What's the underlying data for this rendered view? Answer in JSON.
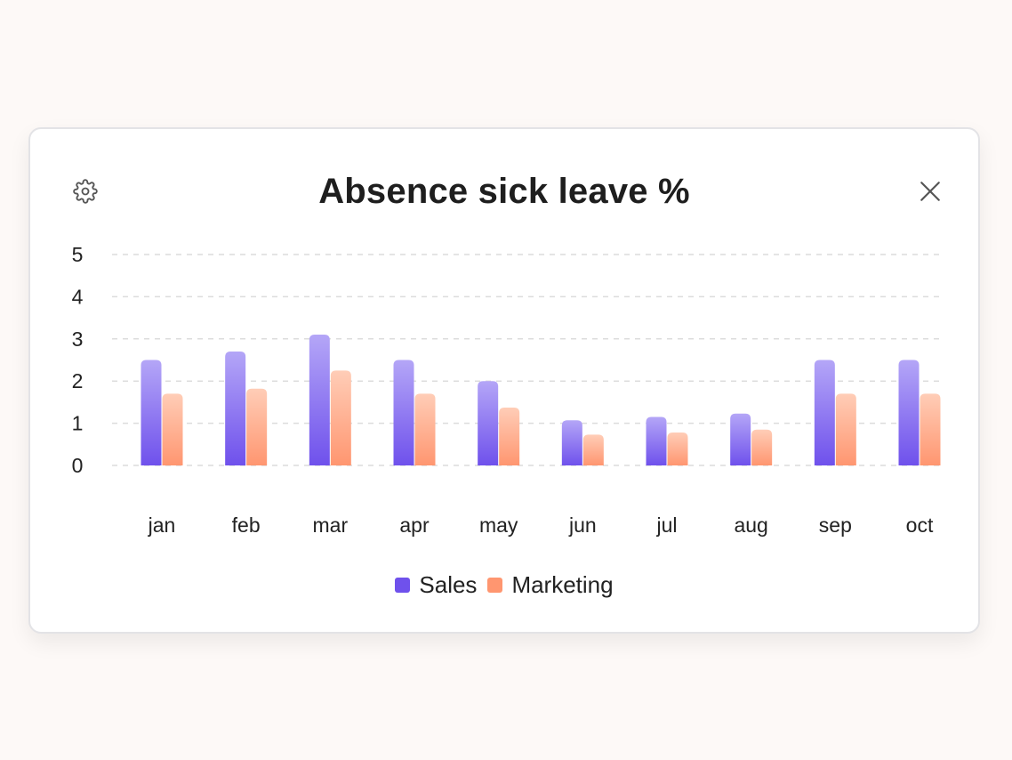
{
  "card": {
    "title": "Absence sick leave %"
  },
  "icons": {
    "settings": "gear-icon",
    "close": "close-icon"
  },
  "colors": {
    "sales_top": "#b4a6f7",
    "sales_bottom": "#6f51ec",
    "marketing_top": "#ffcdb7",
    "marketing_bottom": "#ff9670",
    "grid": "#dcdcdc",
    "text": "#222222"
  },
  "chart_data": {
    "type": "bar",
    "categories": [
      "jan",
      "feb",
      "mar",
      "apr",
      "may",
      "jun",
      "jul",
      "aug",
      "sep",
      "oct"
    ],
    "series": [
      {
        "name": "Sales",
        "values": [
          2.5,
          2.7,
          3.1,
          2.5,
          2.0,
          1.07,
          1.15,
          1.23,
          2.5,
          2.5
        ]
      },
      {
        "name": "Marketing",
        "values": [
          1.7,
          1.82,
          2.25,
          1.7,
          1.37,
          0.73,
          0.78,
          0.85,
          1.7,
          1.7
        ]
      }
    ],
    "yticks": [
      0,
      1,
      2,
      3,
      4,
      5
    ],
    "ylim": [
      0,
      5
    ],
    "grid": true,
    "legend": "bottom-center"
  }
}
